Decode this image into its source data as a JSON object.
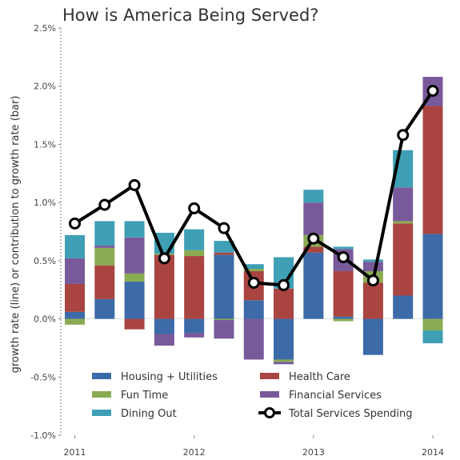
{
  "chart_data": {
    "type": "bar",
    "title": "How is America Being Served?",
    "ylabel": "growth rate (line) or contribution to growth rate (bar)",
    "xlabel": "",
    "ylim": [
      -1.0,
      2.5
    ],
    "y_ticks": [
      -1.0,
      -0.5,
      0.0,
      0.5,
      1.0,
      1.5,
      2.0,
      2.5
    ],
    "y_tick_labels": [
      "-1.0%",
      "-0.5%",
      "0.0%",
      "0.5%",
      "1.0%",
      "1.5%",
      "2.0%",
      "2.5%"
    ],
    "x_tick_labels": [
      {
        "label": "2011",
        "index": 0
      },
      {
        "label": "2012",
        "index": 4
      },
      {
        "label": "2013",
        "index": 8
      },
      {
        "label": "2014",
        "index": 12
      }
    ],
    "grid": false,
    "legend_position": "bottom-center",
    "categories": [
      "2011Q1",
      "2011Q2",
      "2011Q3",
      "2011Q4",
      "2012Q1",
      "2012Q2",
      "2012Q3",
      "2012Q4",
      "2013Q1",
      "2013Q2",
      "2013Q3",
      "2013Q4",
      "2014Q1"
    ],
    "stacked": true,
    "series": [
      {
        "name": "Housing + Utilities",
        "color": "#3d6aa8",
        "values": [
          0.06,
          0.17,
          0.32,
          -0.13,
          -0.12,
          0.55,
          0.16,
          -0.35,
          0.57,
          0.02,
          -0.31,
          0.2,
          0.73
        ]
      },
      {
        "name": "Health Care",
        "color": "#a94441",
        "values": [
          0.24,
          0.29,
          -0.09,
          0.55,
          0.54,
          0.02,
          0.25,
          0.26,
          0.05,
          0.39,
          0.31,
          0.62,
          1.1
        ]
      },
      {
        "name": "Fun Time",
        "color": "#8aab52",
        "values": [
          -0.05,
          0.15,
          0.07,
          0.01,
          0.05,
          -0.01,
          0.02,
          -0.02,
          0.1,
          -0.02,
          0.1,
          0.02,
          -0.1
        ]
      },
      {
        "name": "Financial Services",
        "color": "#785a9a",
        "values": [
          0.22,
          0.02,
          0.31,
          -0.1,
          -0.04,
          -0.16,
          -0.35,
          -0.02,
          0.28,
          0.19,
          0.08,
          0.29,
          0.25
        ]
      },
      {
        "name": "Dining Out",
        "color": "#3f9fb5",
        "values": [
          0.2,
          0.21,
          0.14,
          0.18,
          0.18,
          0.1,
          0.04,
          0.27,
          0.11,
          0.02,
          0.02,
          0.32,
          -0.11
        ]
      }
    ],
    "line": {
      "name": "Total Services Spending",
      "color": "#000000",
      "values": [
        0.82,
        0.98,
        1.15,
        0.52,
        0.95,
        0.78,
        0.31,
        0.29,
        0.69,
        0.53,
        0.33,
        1.58,
        1.96
      ]
    },
    "legend": [
      {
        "name": "Housing + Utilities",
        "kind": "bar",
        "color": "#3d6aa8"
      },
      {
        "name": "Health Care",
        "kind": "bar",
        "color": "#a94441"
      },
      {
        "name": "Fun Time",
        "kind": "bar",
        "color": "#8aab52"
      },
      {
        "name": "Financial Services",
        "kind": "bar",
        "color": "#785a9a"
      },
      {
        "name": "Dining Out",
        "kind": "bar",
        "color": "#3f9fb5"
      },
      {
        "name": "Total Services Spending",
        "kind": "line",
        "color": "#000000"
      }
    ]
  }
}
